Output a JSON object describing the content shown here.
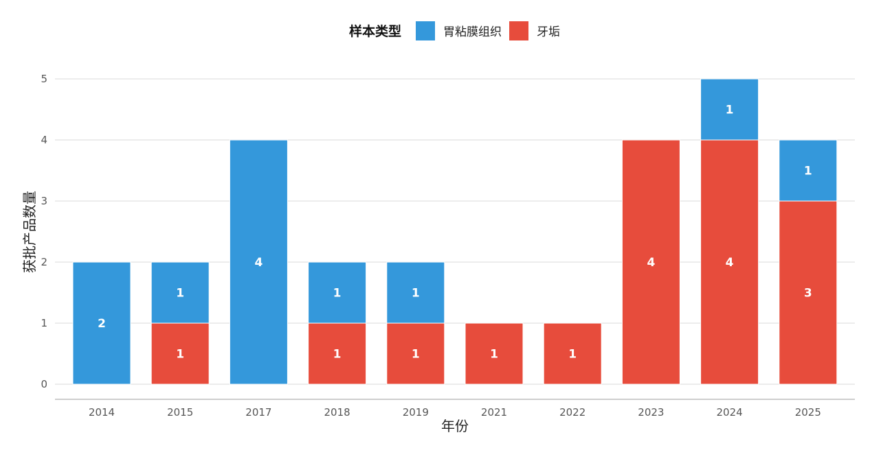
{
  "chart_data": {
    "type": "bar",
    "stacked": true,
    "categories": [
      "2014",
      "2015",
      "2017",
      "2018",
      "2019",
      "2021",
      "2022",
      "2023",
      "2024",
      "2025"
    ],
    "series": [
      {
        "name": "牙垢",
        "color": "#E74C3C",
        "values": [
          0,
          1,
          0,
          1,
          1,
          1,
          1,
          4,
          4,
          3
        ]
      },
      {
        "name": "胃粘膜组织",
        "color": "#3498DB",
        "values": [
          2,
          1,
          4,
          1,
          1,
          0,
          0,
          0,
          1,
          1
        ]
      }
    ],
    "title": "",
    "xlabel": "年份",
    "ylabel": "获批产品数量",
    "ylim": [
      0,
      5
    ],
    "yticks": [
      0,
      1,
      2,
      3,
      4,
      5
    ],
    "grid": true,
    "legend": {
      "title": "样本类型",
      "placement": "top-center",
      "order": [
        "胃粘膜组织",
        "牙垢"
      ]
    }
  }
}
